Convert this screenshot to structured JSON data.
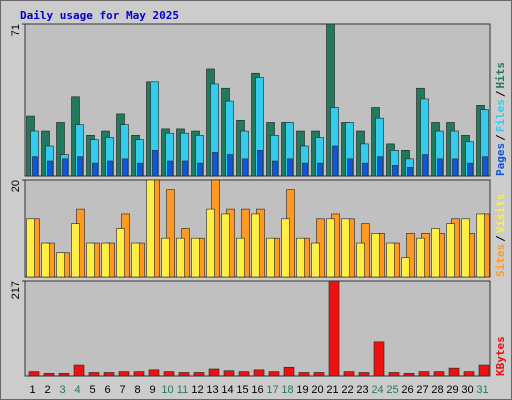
{
  "title": "Daily usage for May 2025",
  "separator": "/",
  "chart_data": [
    {
      "type": "bar",
      "ylim": [
        0,
        71
      ],
      "yticks": [
        71
      ],
      "series": [
        {
          "name": "Pages",
          "color": "#1155dd",
          "values": [
            9,
            7,
            8,
            9,
            6,
            7,
            8,
            6,
            12,
            7,
            7,
            6,
            11,
            10,
            8,
            12,
            7,
            8,
            6,
            6,
            14,
            8,
            6,
            9,
            5,
            4,
            10,
            8,
            8,
            6,
            9
          ]
        },
        {
          "name": "Files",
          "color": "#33ccee",
          "values": [
            21,
            14,
            10,
            24,
            17,
            18,
            24,
            17,
            44,
            20,
            20,
            19,
            43,
            35,
            21,
            46,
            19,
            25,
            14,
            18,
            32,
            25,
            15,
            27,
            12,
            8,
            36,
            21,
            21,
            16,
            31
          ]
        },
        {
          "name": "Hits",
          "color": "#227a5e",
          "values": [
            28,
            21,
            25,
            37,
            19,
            21,
            29,
            19,
            44,
            22,
            22,
            21,
            50,
            41,
            26,
            48,
            25,
            25,
            21,
            21,
            71,
            25,
            21,
            32,
            15,
            12,
            41,
            25,
            25,
            19,
            33
          ]
        }
      ]
    },
    {
      "type": "bar",
      "ylim": [
        0,
        20
      ],
      "yticks": [
        20
      ],
      "series": [
        {
          "name": "Sites",
          "color": "#ff9922",
          "values": [
            12,
            7,
            5,
            14,
            7,
            7,
            13,
            7,
            20,
            18,
            10,
            8,
            20,
            14,
            14,
            14,
            8,
            18,
            8,
            12,
            13,
            12,
            11,
            9,
            7,
            9,
            9,
            9,
            12,
            9,
            13
          ]
        },
        {
          "name": "Visits",
          "color": "#ffee44",
          "values": [
            12,
            7,
            5,
            11,
            7,
            7,
            10,
            7,
            20,
            8,
            8,
            8,
            14,
            13,
            8,
            13,
            8,
            12,
            8,
            7,
            12,
            12,
            7,
            9,
            7,
            4,
            8,
            10,
            11,
            12,
            13
          ]
        }
      ]
    },
    {
      "type": "bar",
      "ylim": [
        0,
        217
      ],
      "yticks": [
        217
      ],
      "categories": [
        "1",
        "2",
        "3",
        "4",
        "5",
        "6",
        "7",
        "8",
        "9",
        "10",
        "11",
        "12",
        "13",
        "14",
        "15",
        "16",
        "17",
        "18",
        "19",
        "20",
        "21",
        "22",
        "23",
        "24",
        "25",
        "26",
        "27",
        "28",
        "29",
        "30",
        "31"
      ],
      "label_colors": [
        "#000",
        "#000",
        "#227a5e",
        "#227a5e",
        "#000",
        "#000",
        "#000",
        "#000",
        "#000",
        "#227a5e",
        "#227a5e",
        "#000",
        "#000",
        "#000",
        "#000",
        "#000",
        "#227a5e",
        "#227a5e",
        "#000",
        "#000",
        "#000",
        "#000",
        "#000",
        "#227a5e",
        "#227a5e",
        "#000",
        "#000",
        "#000",
        "#000",
        "#000",
        "#227a5e"
      ],
      "series": [
        {
          "name": "KBytes",
          "color": "#ee1111",
          "values": [
            10,
            6,
            6,
            25,
            8,
            8,
            10,
            10,
            14,
            10,
            8,
            8,
            16,
            12,
            10,
            14,
            10,
            20,
            8,
            8,
            217,
            10,
            8,
            78,
            8,
            6,
            10,
            10,
            18,
            10,
            25
          ]
        }
      ]
    }
  ]
}
